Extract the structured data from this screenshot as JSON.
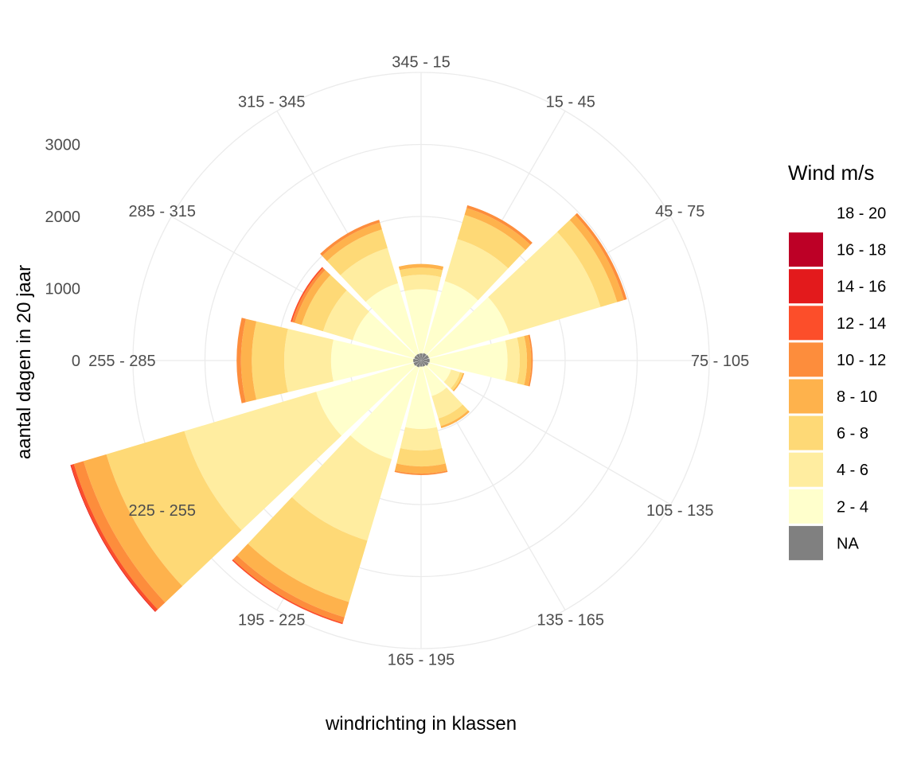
{
  "chart_data": {
    "type": "wind-rose (stacked polar bar)",
    "xlabel": "windrichting in klassen",
    "ylabel": "aantal dagen in 20 jaar",
    "categories": [
      "345 - 15",
      "15 - 45",
      "45 - 75",
      "75 - 105",
      "105 - 135",
      "135 - 165",
      "165 - 195",
      "195 - 225",
      "225 - 255",
      "255 - 285",
      "285 - 315",
      "315 - 345"
    ],
    "radial_ticks": [
      "0",
      "1000",
      "2000",
      "3000"
    ],
    "rlim": [
      0,
      4000
    ],
    "grid": true,
    "legend": {
      "title": "Wind m/s",
      "position": "right",
      "items": [
        {
          "label": "18 - 20",
          "color": "#FFFFFF"
        },
        {
          "label": "16 - 18",
          "color": "#BD0026"
        },
        {
          "label": "14 - 16",
          "color": "#E31A1C"
        },
        {
          "label": "12 - 14",
          "color": "#FC4E2A"
        },
        {
          "label": "10 - 12",
          "color": "#FD8D3C"
        },
        {
          "label": "8 - 10",
          "color": "#FEB24C"
        },
        {
          "label": "6 - 8",
          "color": "#FED976"
        },
        {
          "label": "4 - 6",
          "color": "#FFEDA0"
        },
        {
          "label": "2 - 4",
          "color": "#FFFFCC"
        },
        {
          "label": "NA",
          "color": "#808080"
        }
      ]
    },
    "stack_order": [
      "NA",
      "2 - 4",
      "4 - 6",
      "6 - 8",
      "8 - 10",
      "10 - 12",
      "12 - 14",
      "14 - 16",
      "16 - 18",
      "18 - 20"
    ],
    "series": [
      {
        "name": "NA",
        "values": [
          100,
          110,
          115,
          120,
          110,
          90,
          85,
          100,
          110,
          110,
          100,
          100
        ]
      },
      {
        "name": "2 - 4",
        "values": [
          890,
          1040,
          1165,
          1080,
          325,
          425,
          865,
          1330,
          1410,
          1140,
          890,
          1020
        ]
      },
      {
        "name": "4 - 6",
        "values": [
          200,
          610,
          1320,
          170,
          130,
          325,
          300,
          1180,
          1910,
          650,
          430,
          510
        ]
      },
      {
        "name": "6 - 8",
        "values": [
          100,
          350,
          240,
          100,
          40,
          110,
          220,
          890,
          1130,
          450,
          310,
          270
        ]
      },
      {
        "name": "8 - 10",
        "values": [
          50,
          100,
          100,
          60,
          20,
          30,
          100,
          220,
          330,
          150,
          100,
          100
        ]
      },
      {
        "name": "10 - 12",
        "values": [
          0,
          40,
          40,
          20,
          0,
          0,
          20,
          80,
          140,
          60,
          40,
          40
        ]
      },
      {
        "name": "12 - 14",
        "values": [
          0,
          0,
          0,
          0,
          0,
          0,
          0,
          20,
          40,
          0,
          20,
          0
        ]
      },
      {
        "name": "14 - 16",
        "values": [
          0,
          0,
          0,
          0,
          0,
          0,
          0,
          0,
          10,
          0,
          0,
          0
        ]
      },
      {
        "name": "16 - 18",
        "values": [
          0,
          0,
          0,
          0,
          0,
          0,
          0,
          0,
          0,
          0,
          0,
          0
        ]
      },
      {
        "name": "18 - 20",
        "values": [
          0,
          0,
          0,
          0,
          0,
          0,
          0,
          0,
          0,
          0,
          0,
          0
        ]
      }
    ]
  }
}
